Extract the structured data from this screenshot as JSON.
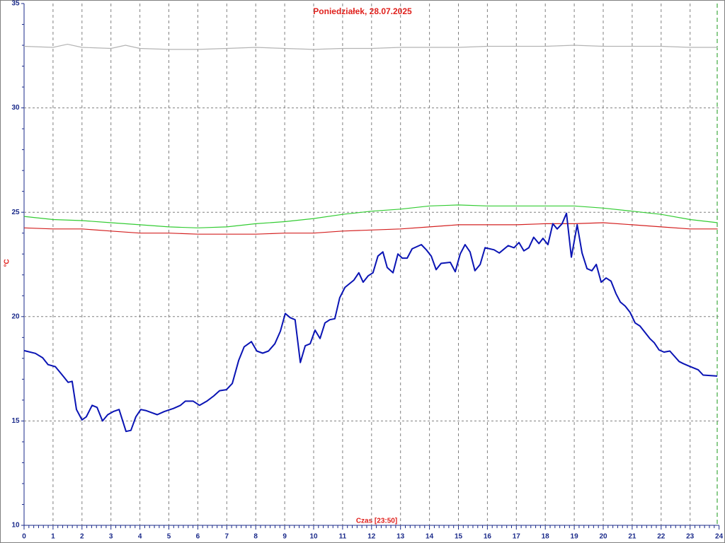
{
  "chart_data": {
    "type": "line",
    "title": "Poniedziałek, 28.07.2025",
    "x_label": "Czas [23:50]",
    "y_label": "°C",
    "xlim": [
      0,
      24
    ],
    "xticks": [
      0,
      1,
      2,
      3,
      4,
      5,
      6,
      7,
      8,
      9,
      10,
      11,
      12,
      13,
      14,
      15,
      16,
      17,
      18,
      19,
      20,
      21,
      22,
      23,
      24
    ],
    "ylim": [
      10,
      35
    ],
    "yticks": [
      10,
      15,
      20,
      25,
      30,
      35
    ],
    "grid": true,
    "series": [
      {
        "color": "#b4b4b4",
        "x": [
          0,
          1,
          1.5,
          2,
          3,
          3.5,
          4,
          5,
          6,
          7,
          8,
          9,
          10,
          11,
          12,
          13,
          14,
          15,
          16,
          17,
          18,
          19,
          20,
          21,
          22,
          23,
          23.95
        ],
        "values": [
          32.95,
          32.9,
          33.05,
          32.9,
          32.85,
          33.0,
          32.85,
          32.8,
          32.8,
          32.85,
          32.9,
          32.85,
          32.8,
          32.85,
          32.85,
          32.9,
          32.9,
          32.9,
          32.95,
          32.95,
          32.95,
          33.0,
          32.95,
          32.95,
          32.95,
          32.9,
          32.9
        ]
      },
      {
        "color": "#33cc33",
        "x": [
          0,
          1,
          2,
          3,
          4,
          5,
          6,
          7,
          8,
          9,
          10,
          11,
          12,
          13,
          14,
          15,
          16,
          17,
          18,
          19,
          20,
          21,
          22,
          23,
          23.95
        ],
        "values": [
          24.8,
          24.65,
          24.6,
          24.5,
          24.4,
          24.3,
          24.25,
          24.3,
          24.45,
          24.55,
          24.7,
          24.9,
          25.05,
          25.15,
          25.3,
          25.35,
          25.3,
          25.3,
          25.3,
          25.3,
          25.2,
          25.05,
          24.9,
          24.65,
          24.5
        ]
      },
      {
        "color": "#d42020",
        "x": [
          0,
          1,
          2,
          3,
          4,
          5,
          6,
          7,
          8,
          9,
          10,
          11,
          12,
          13,
          14,
          15,
          16,
          17,
          18,
          19,
          20,
          21,
          22,
          23,
          23.95
        ],
        "values": [
          24.25,
          24.2,
          24.2,
          24.1,
          24.0,
          24.0,
          23.95,
          23.95,
          23.95,
          24.0,
          24.0,
          24.1,
          24.15,
          24.2,
          24.3,
          24.4,
          24.4,
          24.4,
          24.45,
          24.45,
          24.5,
          24.4,
          24.3,
          24.2,
          24.2
        ]
      },
      {
        "color": "#0a14b4",
        "x": [
          0,
          0.39,
          0.64,
          0.83,
          1.08,
          1.32,
          1.52,
          1.66,
          1.81,
          2.0,
          2.15,
          2.35,
          2.52,
          2.71,
          2.89,
          3.08,
          3.28,
          3.52,
          3.69,
          3.86,
          4.03,
          4.2,
          4.4,
          4.6,
          4.84,
          5.16,
          5.4,
          5.57,
          5.84,
          6.06,
          6.31,
          6.55,
          6.75,
          6.99,
          7.19,
          7.41,
          7.6,
          7.85,
          8.04,
          8.24,
          8.44,
          8.66,
          8.85,
          9.02,
          9.19,
          9.36,
          9.54,
          9.71,
          9.88,
          10.05,
          10.22,
          10.39,
          10.56,
          10.73,
          10.9,
          11.08,
          11.39,
          11.56,
          11.71,
          11.88,
          12.05,
          12.22,
          12.39,
          12.54,
          12.74,
          12.91,
          13.06,
          13.23,
          13.4,
          13.72,
          13.89,
          14.06,
          14.23,
          14.4,
          14.72,
          14.89,
          15.06,
          15.23,
          15.4,
          15.57,
          15.75,
          15.92,
          16.23,
          16.41,
          16.72,
          16.92,
          17.09,
          17.26,
          17.43,
          17.6,
          17.78,
          17.92,
          18.09,
          18.26,
          18.41,
          18.58,
          18.73,
          18.9,
          19.1,
          19.27,
          19.44,
          19.61,
          19.76,
          19.93,
          20.1,
          20.27,
          20.44,
          20.59,
          20.76,
          20.93,
          21.1,
          21.27,
          21.61,
          21.76,
          21.93,
          22.1,
          22.3,
          22.62,
          22.76,
          22.93,
          23.28,
          23.45,
          23.94
        ],
        "values": [
          18.37,
          18.24,
          18.03,
          17.7,
          17.6,
          17.2,
          16.85,
          16.9,
          15.55,
          15.05,
          15.2,
          15.75,
          15.65,
          15.0,
          15.3,
          15.45,
          15.55,
          14.5,
          14.55,
          15.2,
          15.55,
          15.5,
          15.4,
          15.3,
          15.45,
          15.6,
          15.75,
          15.95,
          15.95,
          15.75,
          15.95,
          16.2,
          16.45,
          16.5,
          16.8,
          17.9,
          18.55,
          18.8,
          18.35,
          18.25,
          18.35,
          18.7,
          19.3,
          20.15,
          19.95,
          19.85,
          17.8,
          18.6,
          18.7,
          19.35,
          18.95,
          19.7,
          19.85,
          19.9,
          20.9,
          21.4,
          21.75,
          22.1,
          21.65,
          21.95,
          22.1,
          22.9,
          23.1,
          22.35,
          22.1,
          23.0,
          22.8,
          22.8,
          23.25,
          23.45,
          23.2,
          22.9,
          22.25,
          22.55,
          22.6,
          22.15,
          23.0,
          23.45,
          23.1,
          22.2,
          22.5,
          23.3,
          23.2,
          23.05,
          23.4,
          23.3,
          23.55,
          23.15,
          23.3,
          23.8,
          23.5,
          23.75,
          23.45,
          24.45,
          24.2,
          24.45,
          24.95,
          22.85,
          24.4,
          23.05,
          22.3,
          22.2,
          22.5,
          21.65,
          21.85,
          21.7,
          21.1,
          20.7,
          20.5,
          20.2,
          19.7,
          19.55,
          18.95,
          18.75,
          18.4,
          18.3,
          18.35,
          17.85,
          17.75,
          17.65,
          17.45,
          17.2,
          17.15
        ]
      }
    ]
  }
}
